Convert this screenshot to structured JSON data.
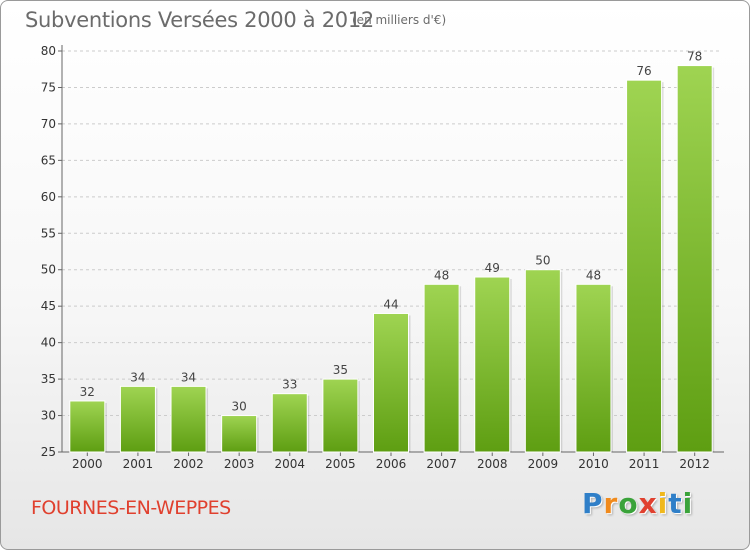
{
  "header": {
    "title": "Subventions Versées 2000 à 2012",
    "unit": "(en milliers d'€)"
  },
  "footer": {
    "commune": "FOURNES-EN-WEPPES",
    "logo": [
      "P",
      "r",
      "o",
      "x",
      "i",
      "t",
      "i"
    ],
    "logo_colors": [
      "#2f7fc8",
      "#f08a1c",
      "#3aa33a",
      "#e0402e",
      "#f0b81c",
      "#2f7fc8",
      "#3aa33a"
    ]
  },
  "chart_data": {
    "type": "bar",
    "title": "Subventions Versées 2000 à 2012",
    "subtitle": "(en milliers d'€)",
    "xlabel": "",
    "ylabel": "",
    "categories": [
      "2000",
      "2001",
      "2002",
      "2003",
      "2004",
      "2005",
      "2006",
      "2007",
      "2008",
      "2009",
      "2010",
      "2011",
      "2012"
    ],
    "values": [
      32,
      34,
      34,
      30,
      33,
      35,
      44,
      48,
      49,
      50,
      48,
      76,
      78
    ],
    "data_labels": [
      "32",
      "34",
      "34",
      "30",
      "33",
      "35",
      "44",
      "48",
      "49",
      "50",
      "48",
      "76",
      "78"
    ],
    "ylim": [
      25,
      80
    ],
    "yticks": [
      25,
      30,
      35,
      40,
      45,
      50,
      55,
      60,
      65,
      70,
      75,
      80
    ],
    "ytick_labels": [
      "25",
      "30",
      "35",
      "40",
      "45",
      "50",
      "55",
      "60",
      "65",
      "70",
      "75",
      "80"
    ],
    "grid": true,
    "bar_color_top": "#9fd452",
    "bar_color_bottom": "#5e9e12"
  }
}
